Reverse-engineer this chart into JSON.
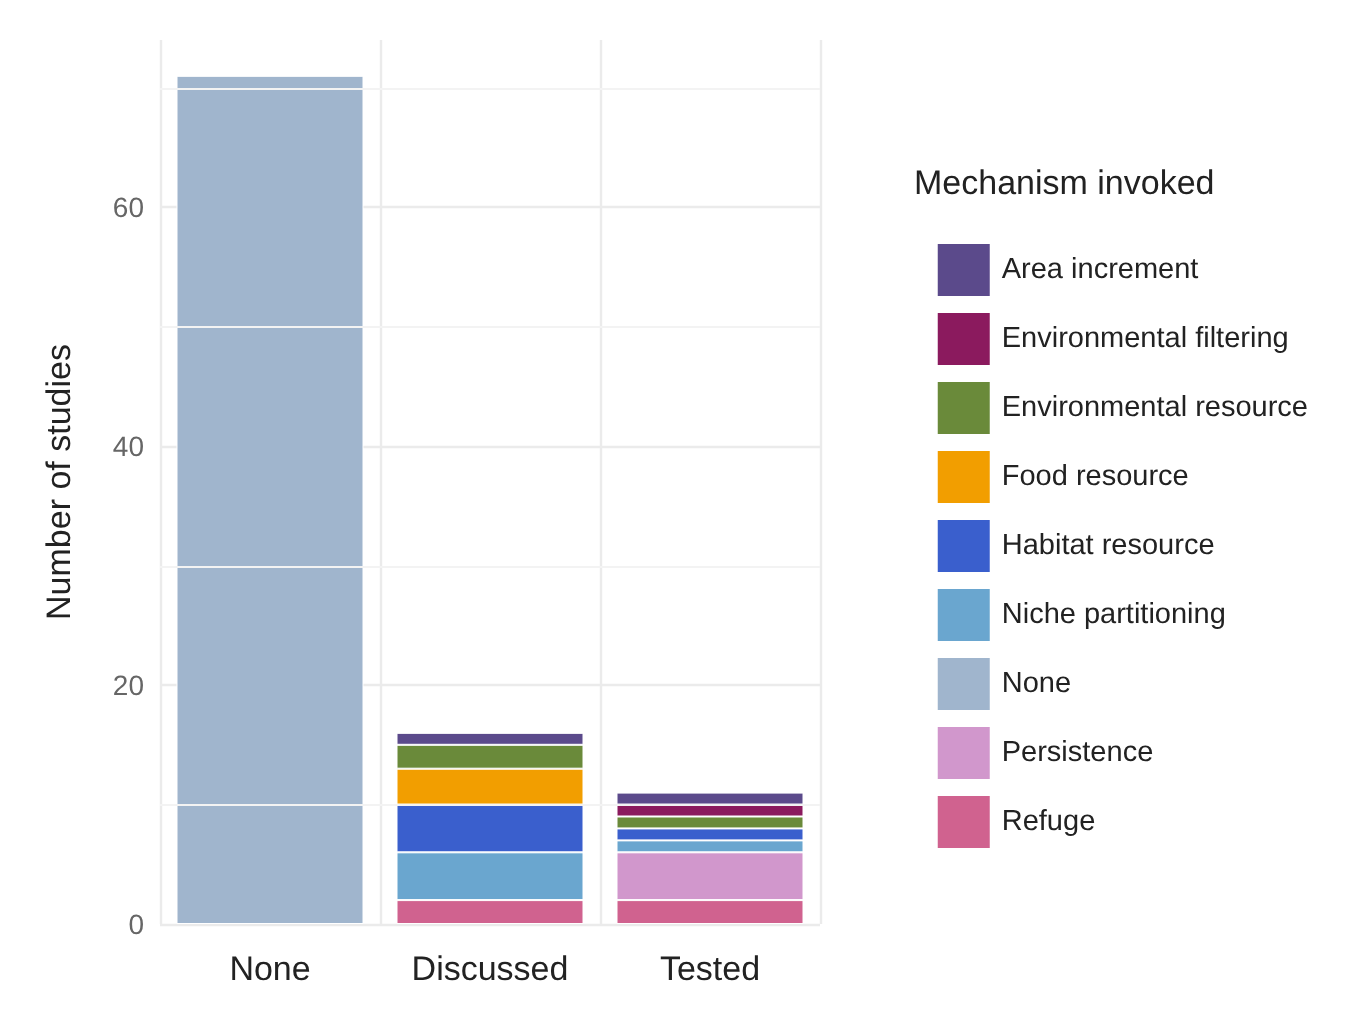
{
  "chart_data": {
    "type": "bar",
    "stacked": true,
    "xlabel": null,
    "ylabel": "Number of studies",
    "legend_title": "Mechanism invoked",
    "legend": "right",
    "grid": true,
    "categories": [
      "None",
      "Discussed",
      "Tested"
    ],
    "ylim": [
      0,
      74
    ],
    "yticks": [
      0,
      20,
      40,
      60
    ],
    "series": [
      {
        "name": "Refuge",
        "color": "#d0628f",
        "values": [
          null,
          2,
          2
        ]
      },
      {
        "name": "Persistence",
        "color": "#d197cc",
        "values": [
          null,
          null,
          4
        ]
      },
      {
        "name": "None",
        "color": "#a0b5cd",
        "values": [
          71,
          null,
          null
        ]
      },
      {
        "name": "Niche partitioning",
        "color": "#6aa6cf",
        "values": [
          null,
          4,
          1
        ]
      },
      {
        "name": "Habitat resource",
        "color": "#3a5fcd",
        "values": [
          null,
          4,
          1
        ]
      },
      {
        "name": "Food resource",
        "color": "#f29e00",
        "values": [
          null,
          3,
          null
        ]
      },
      {
        "name": "Environmental resource",
        "color": "#6a8a3a",
        "values": [
          null,
          2,
          1
        ]
      },
      {
        "name": "Environmental filtering",
        "color": "#8b1a5e",
        "values": [
          null,
          null,
          1
        ]
      },
      {
        "name": "Area increment",
        "color": "#5b4a8b",
        "values": [
          null,
          1,
          1
        ]
      }
    ]
  }
}
